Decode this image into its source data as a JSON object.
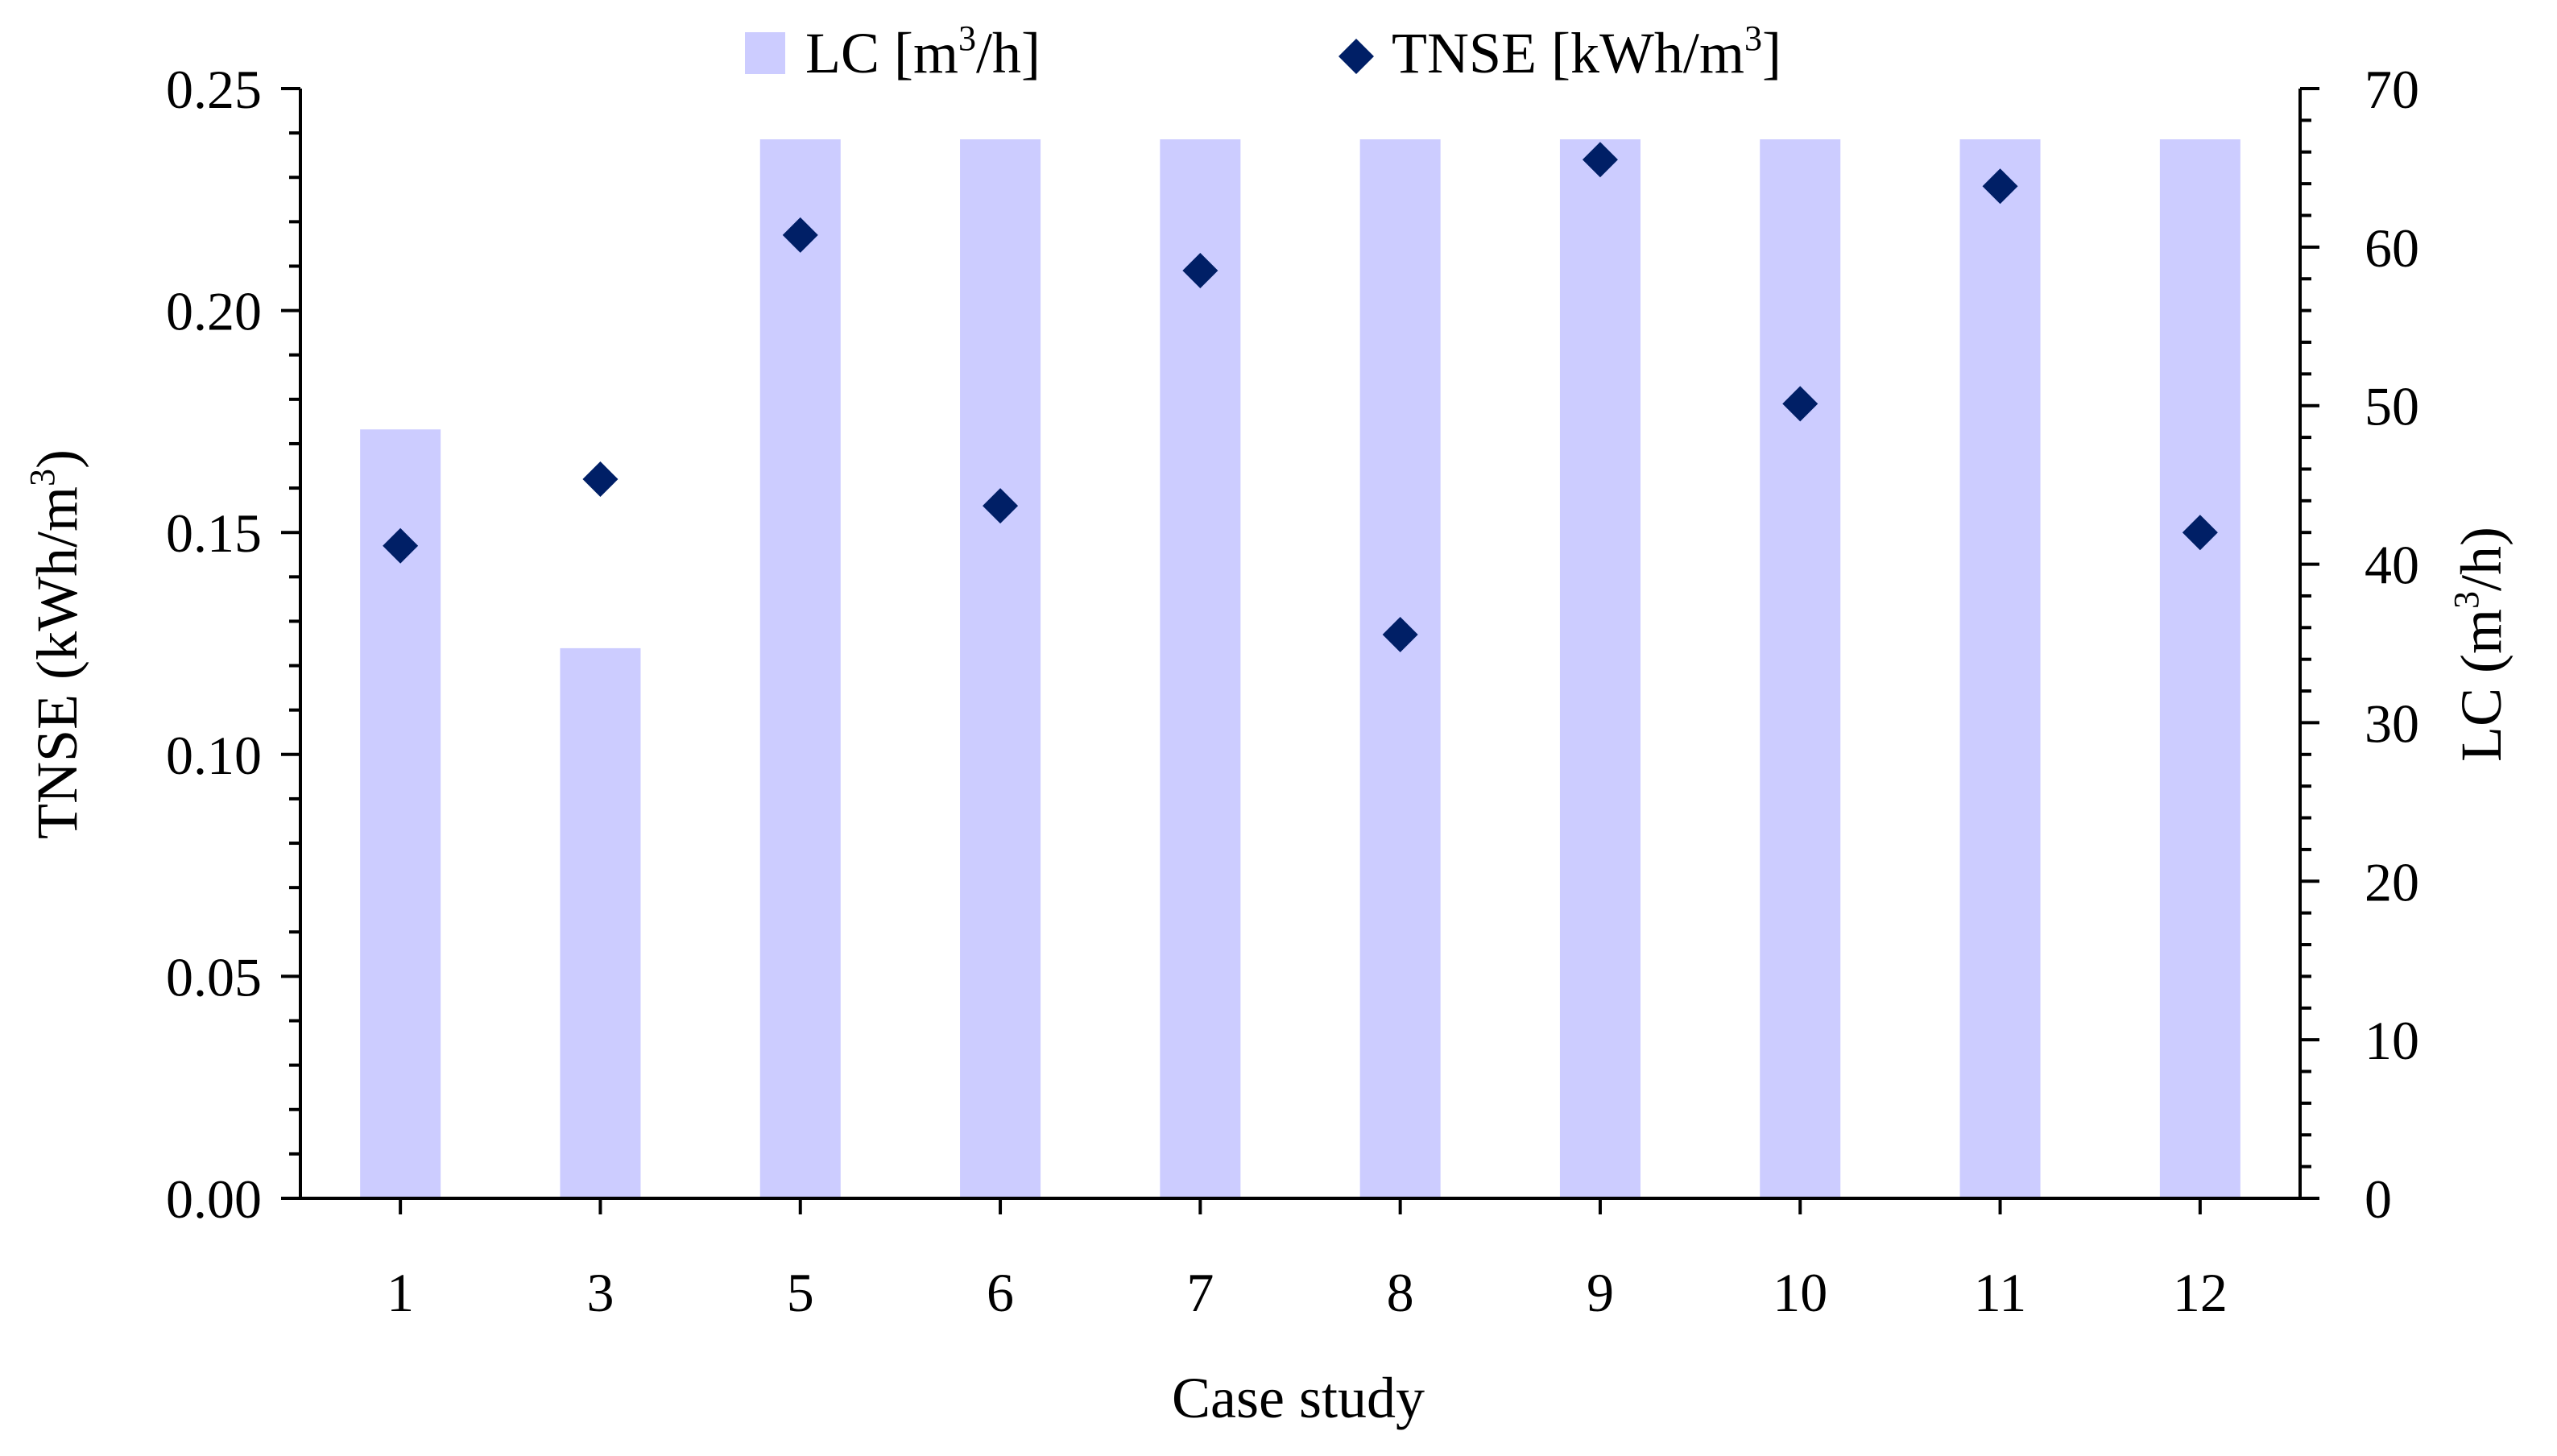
{
  "chart_data": {
    "type": "bar+scatter",
    "categories": [
      "1",
      "3",
      "5",
      "6",
      "7",
      "8",
      "9",
      "10",
      "11",
      "12"
    ],
    "series": [
      {
        "name": "LC [m³/h]",
        "axis": "right",
        "kind": "bar",
        "color": "#ccccff",
        "values": [
          48.5,
          34.7,
          66.8,
          66.8,
          66.8,
          66.8,
          66.8,
          66.8,
          66.8,
          66.8
        ]
      },
      {
        "name": "TNSE [kWh/m³]",
        "axis": "left",
        "kind": "scatter",
        "marker": "diamond",
        "color": "#001f66",
        "values": [
          0.147,
          0.162,
          0.217,
          0.156,
          0.209,
          0.127,
          0.234,
          0.179,
          0.228,
          0.15
        ]
      }
    ],
    "left_axis": {
      "label_main": "TNSE (kWh/m",
      "label_sup": "3",
      "label_end": ")",
      "range": [
        0,
        0.25
      ],
      "ticks": [
        "0.00",
        "0.05",
        "0.10",
        "0.15",
        "0.20",
        "0.25"
      ],
      "tick_values": [
        0,
        0.05,
        0.1,
        0.15,
        0.2,
        0.25
      ],
      "minor_step": 0.01
    },
    "right_axis": {
      "label_main": "LC (m",
      "label_sup": "3",
      "label_end": "/h)",
      "range": [
        0,
        70
      ],
      "ticks": [
        "0",
        "10",
        "20",
        "30",
        "40",
        "50",
        "60",
        "70"
      ],
      "tick_values": [
        0,
        10,
        20,
        30,
        40,
        50,
        60,
        70
      ],
      "minor_step": 2
    },
    "x_axis": {
      "label": "Case study"
    },
    "legend": {
      "placement": "top-center",
      "items": [
        {
          "main": "LC [m",
          "sup": "3",
          "end": "/h]"
        },
        {
          "main": "TNSE [kWh/m",
          "sup": "3",
          "end": "]"
        }
      ]
    }
  }
}
